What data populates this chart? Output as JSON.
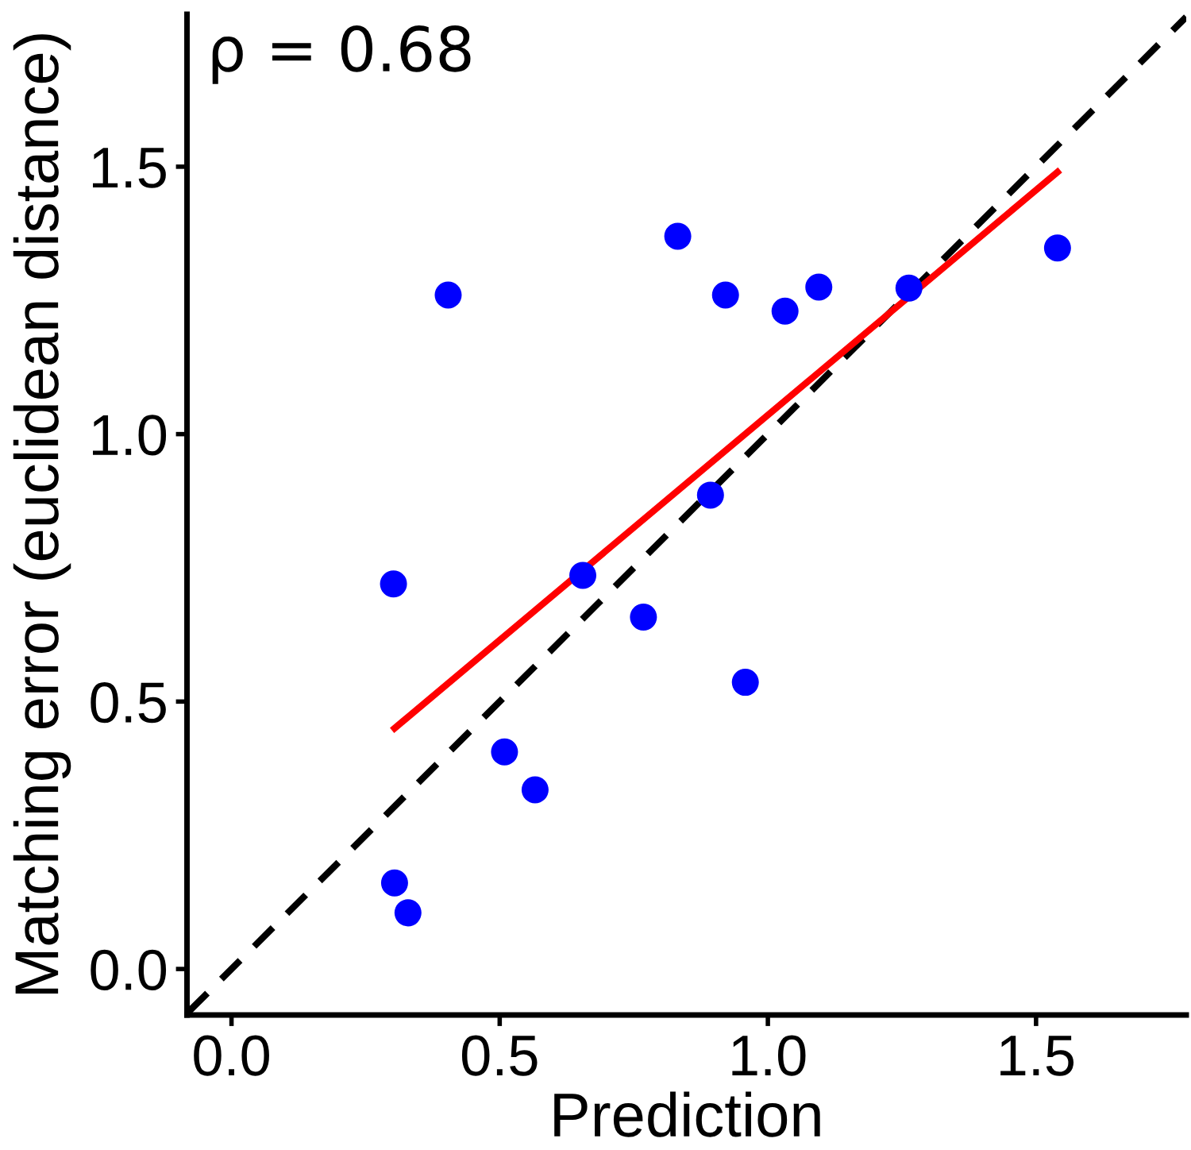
{
  "chart_data": {
    "type": "scatter",
    "xlabel": "Prediction",
    "ylabel": "Matching error (euclidean distance)",
    "annotations": [
      "ρ = 0.68"
    ],
    "series": [
      {
        "color": "#0000ff",
        "marker": "circle",
        "x": [
          0.404,
          0.832,
          0.921,
          1.032,
          1.095,
          1.263,
          1.54,
          0.893,
          0.302,
          0.655,
          0.768,
          0.958,
          0.509,
          0.566,
          0.304,
          0.329
        ],
        "values": [
          1.26,
          1.37,
          1.26,
          1.23,
          1.275,
          1.273,
          1.348,
          0.886,
          0.72,
          0.736,
          0.658,
          0.536,
          0.406,
          0.335,
          0.161,
          0.105
        ]
      },
      {
        "type": "line",
        "color": "#000000",
        "line_style": "dashed",
        "x": [
          -0.08,
          1.78
        ],
        "values": [
          -0.08,
          1.78
        ]
      },
      {
        "type": "line",
        "color": "#ff0000",
        "line_style": "solid",
        "x": [
          0.304,
          1.54
        ],
        "values": [
          0.45,
          1.49
        ]
      }
    ],
    "xlim": [
      -0.083,
      1.78
    ],
    "ylim": [
      -0.086,
      1.785
    ],
    "xticks": [
      {
        "value": 0,
        "label": "0.0"
      },
      {
        "value": 0.5,
        "label": "0.5"
      },
      {
        "value": 1,
        "label": "1.0"
      },
      {
        "value": 1.5,
        "label": "1.5"
      }
    ],
    "yticks": [
      {
        "value": 0,
        "label": "0.0"
      },
      {
        "value": 0.5,
        "label": "0.5"
      },
      {
        "value": 1,
        "label": "1.0"
      },
      {
        "value": 1.5,
        "label": "1.5"
      }
    ],
    "grid": false,
    "legend": false
  }
}
